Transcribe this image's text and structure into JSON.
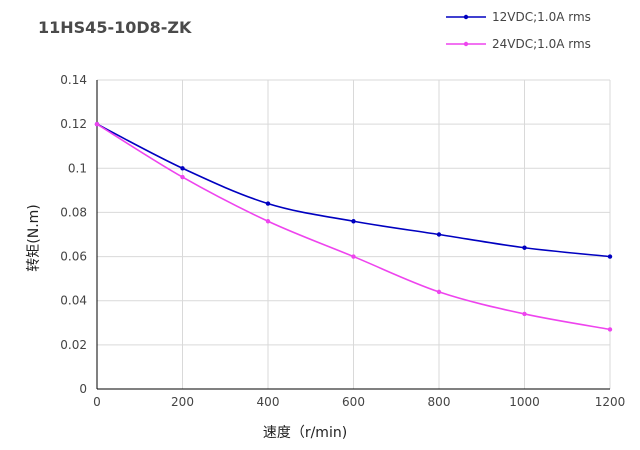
{
  "chart_data": {
    "type": "line",
    "title": "11HS45-10D8-ZK",
    "xlabel": "速度（r/min)",
    "ylabel": "转矩(N.m)",
    "x": [
      0,
      200,
      400,
      600,
      800,
      1000,
      1200
    ],
    "x_ticks": [
      "0",
      "200",
      "400",
      "600",
      "800",
      "1000",
      "1200"
    ],
    "y_ticks": [
      "0",
      "0.02",
      "0.04",
      "0.06",
      "0.08",
      "0.1",
      "0.12",
      "0.14"
    ],
    "xlim": [
      0,
      1200
    ],
    "ylim": [
      0,
      0.14
    ],
    "grid": true,
    "legend_position": "top-right",
    "series": [
      {
        "name": "12VDC;1.0A rms",
        "color": "#0000c0",
        "values": [
          0.12,
          0.1,
          0.084,
          0.076,
          0.07,
          0.064,
          0.06
        ]
      },
      {
        "name": "24VDC;1.0A rms",
        "color": "#ee44ee",
        "values": [
          0.12,
          0.096,
          0.076,
          0.06,
          0.044,
          0.034,
          0.027
        ]
      }
    ]
  }
}
